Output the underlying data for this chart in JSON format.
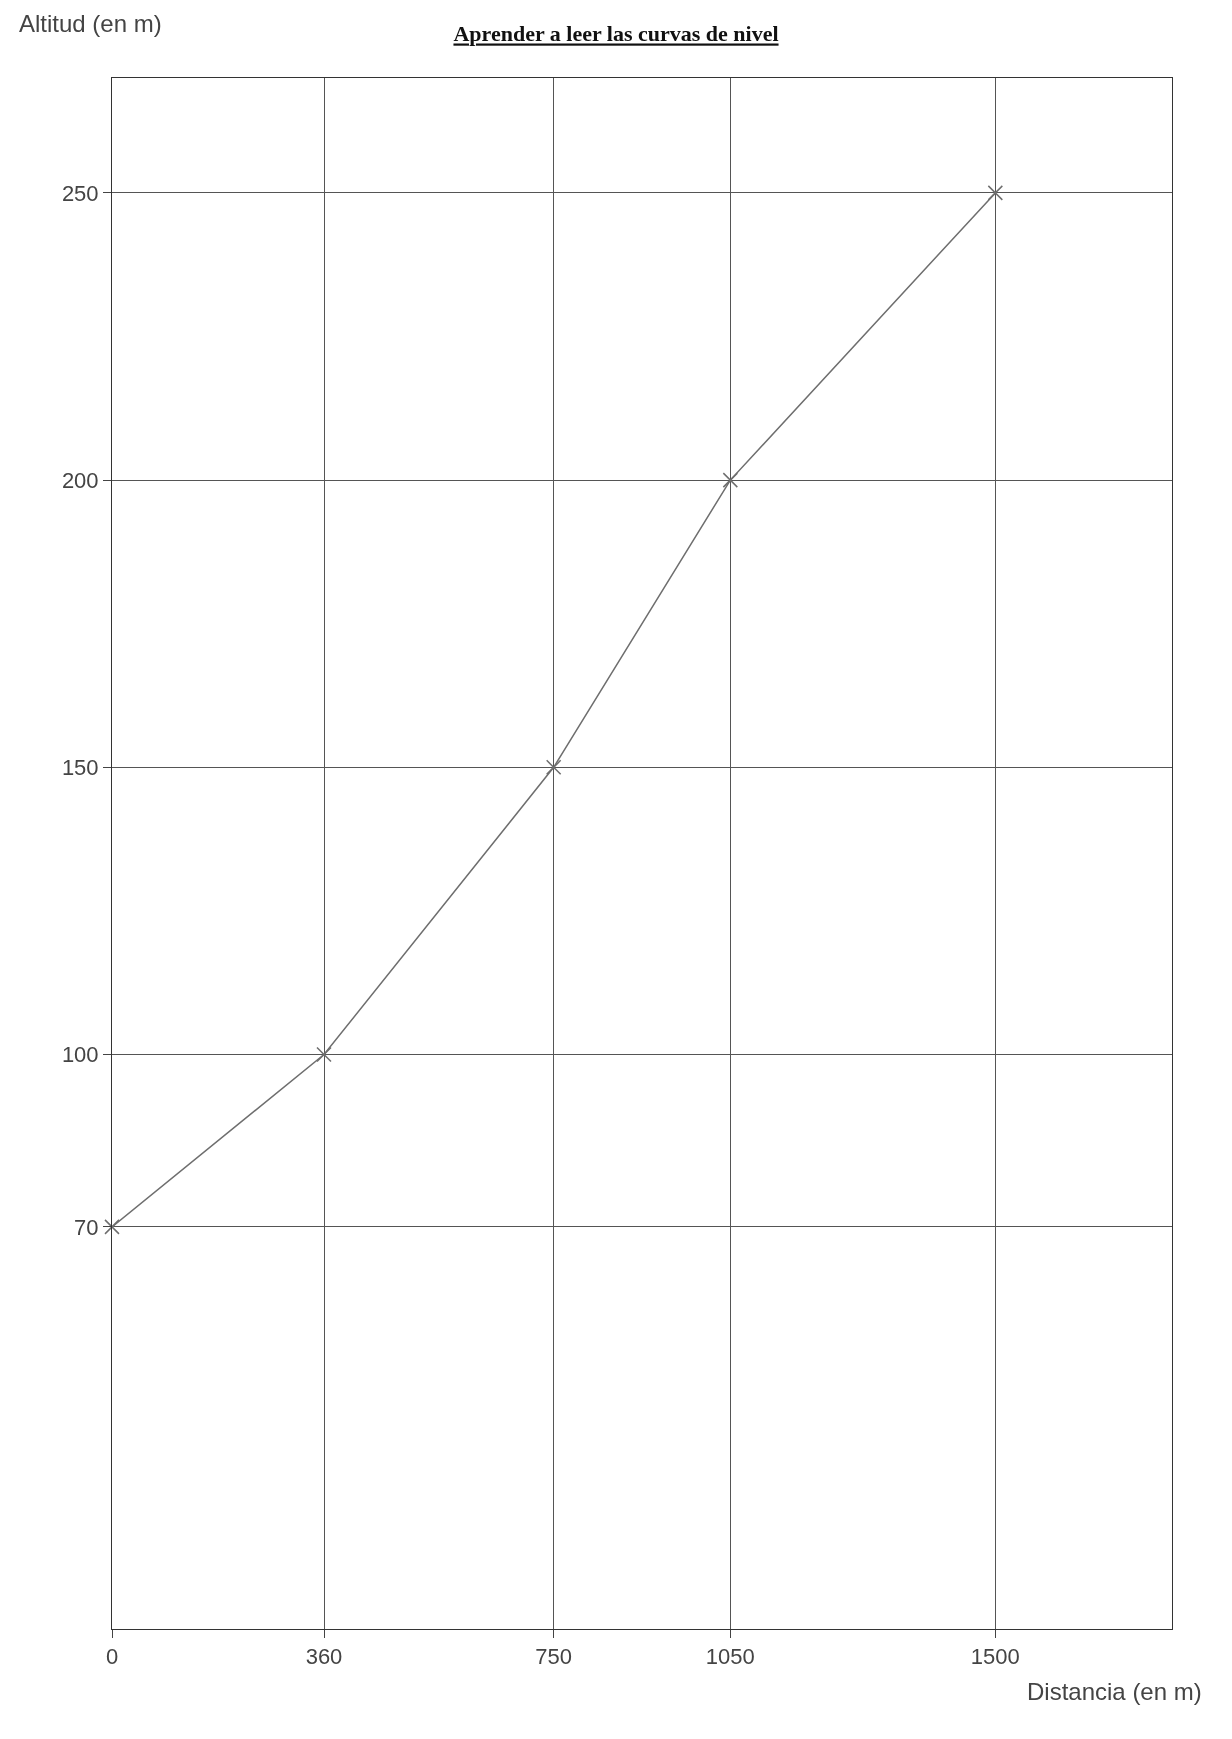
{
  "chart_data": {
    "type": "line",
    "title": "Aprender a leer las curvas de nivel",
    "xlabel": "Distancia (en m)",
    "ylabel": "Altitud (en m)",
    "x": [
      0,
      360,
      750,
      1050,
      1500
    ],
    "series": [
      {
        "color": "#6e6e6e",
        "values": [
          70,
          100,
          150,
          200,
          250
        ]
      }
    ],
    "xlim": [
      0,
      1800
    ],
    "ylim": [
      0,
      270
    ],
    "xticks": [
      0,
      360,
      750,
      1050,
      1500
    ],
    "yticks": [
      70,
      100,
      150,
      200,
      250
    ],
    "grid": true,
    "marker": "cross",
    "line_style": "solid"
  }
}
